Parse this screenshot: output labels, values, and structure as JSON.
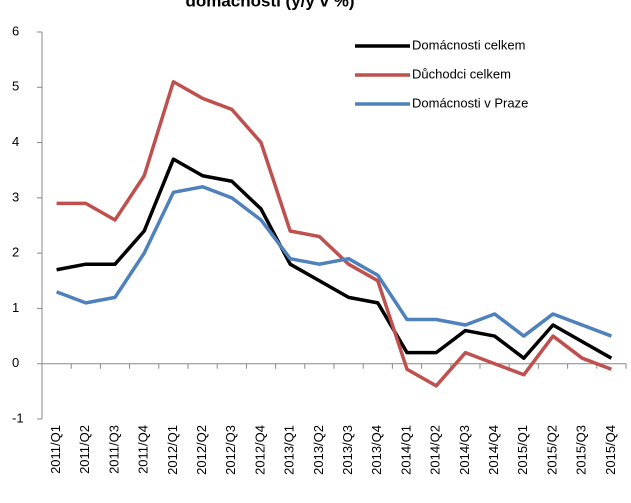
{
  "chart_data": {
    "type": "line",
    "title": "domácností (y/y v %)",
    "categories": [
      "2011/Q1",
      "2011/Q2",
      "2011/Q3",
      "2011/Q4",
      "2012/Q1",
      "2012/Q2",
      "2012/Q3",
      "2012/Q4",
      "2013/Q1",
      "2013/Q2",
      "2013/Q3",
      "2013/Q4",
      "2014/Q1",
      "2014/Q2",
      "2014/Q3",
      "2014/Q4",
      "2015/Q1",
      "2015/Q2",
      "2015/Q3",
      "2015/Q4"
    ],
    "series": [
      {
        "name": "Domácnosti celkem",
        "color": "#000000",
        "values": [
          1.7,
          1.8,
          1.8,
          2.4,
          3.7,
          3.4,
          3.3,
          2.8,
          1.8,
          1.5,
          1.2,
          1.1,
          0.2,
          0.2,
          0.6,
          0.5,
          0.1,
          0.7,
          0.4,
          0.1
        ]
      },
      {
        "name": "Důchodci celkem",
        "color": "#c0504d",
        "values": [
          2.9,
          2.9,
          2.6,
          3.4,
          5.1,
          4.8,
          4.6,
          4.0,
          2.4,
          2.3,
          1.8,
          1.5,
          -0.1,
          -0.4,
          0.2,
          0.0,
          -0.2,
          0.5,
          0.1,
          -0.1
        ]
      },
      {
        "name": "Domácnosti v Praze",
        "color": "#4f81bd",
        "values": [
          1.3,
          1.1,
          1.2,
          2.0,
          3.1,
          3.2,
          3.0,
          2.6,
          1.9,
          1.8,
          1.9,
          1.6,
          0.8,
          0.8,
          0.7,
          0.9,
          0.5,
          0.9,
          0.7,
          0.5
        ]
      }
    ],
    "ylim": [
      -1,
      6
    ],
    "yticks": [
      -1,
      0,
      1,
      2,
      3,
      4,
      5,
      6
    ],
    "grid": false
  }
}
